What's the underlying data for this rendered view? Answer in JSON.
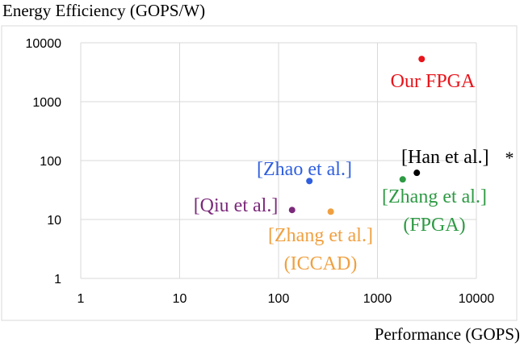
{
  "chart_data": {
    "type": "scatter",
    "title": "",
    "ylabel": "Energy Efficiency (GOPS/W)",
    "xlabel": "Performance (GOPS)",
    "x_scale": "log",
    "y_scale": "log",
    "xlim": [
      1,
      10000
    ],
    "ylim": [
      1,
      10000
    ],
    "x_ticks": [
      "1",
      "10",
      "100",
      "1000",
      "10000"
    ],
    "y_ticks": [
      "1",
      "10",
      "100",
      "1000",
      "10000"
    ],
    "grid": true,
    "legend": "none",
    "points": [
      {
        "label": [
          "Our FPGA"
        ],
        "x": 2800,
        "y": 5300,
        "color": "#e8141b"
      },
      {
        "label": [
          "[Han et al.]"
        ],
        "annotation": "*",
        "x": 2500,
        "y": 62,
        "color": "#000000"
      },
      {
        "label": [
          "[Zhang et al.]",
          "(FPGA)"
        ],
        "x": 1800,
        "y": 48,
        "color": "#2e9a44"
      },
      {
        "label": [
          "[Zhao et al.]"
        ],
        "x": 205,
        "y": 45,
        "color": "#2f5fe0"
      },
      {
        "label": [
          "[Qiu et al.]"
        ],
        "x": 137,
        "y": 14.5,
        "color": "#7b2a7b"
      },
      {
        "label": [
          "[Zhang et al.]",
          "(ICCAD)"
        ],
        "x": 337,
        "y": 13.6,
        "color": "#f0a040"
      }
    ]
  }
}
